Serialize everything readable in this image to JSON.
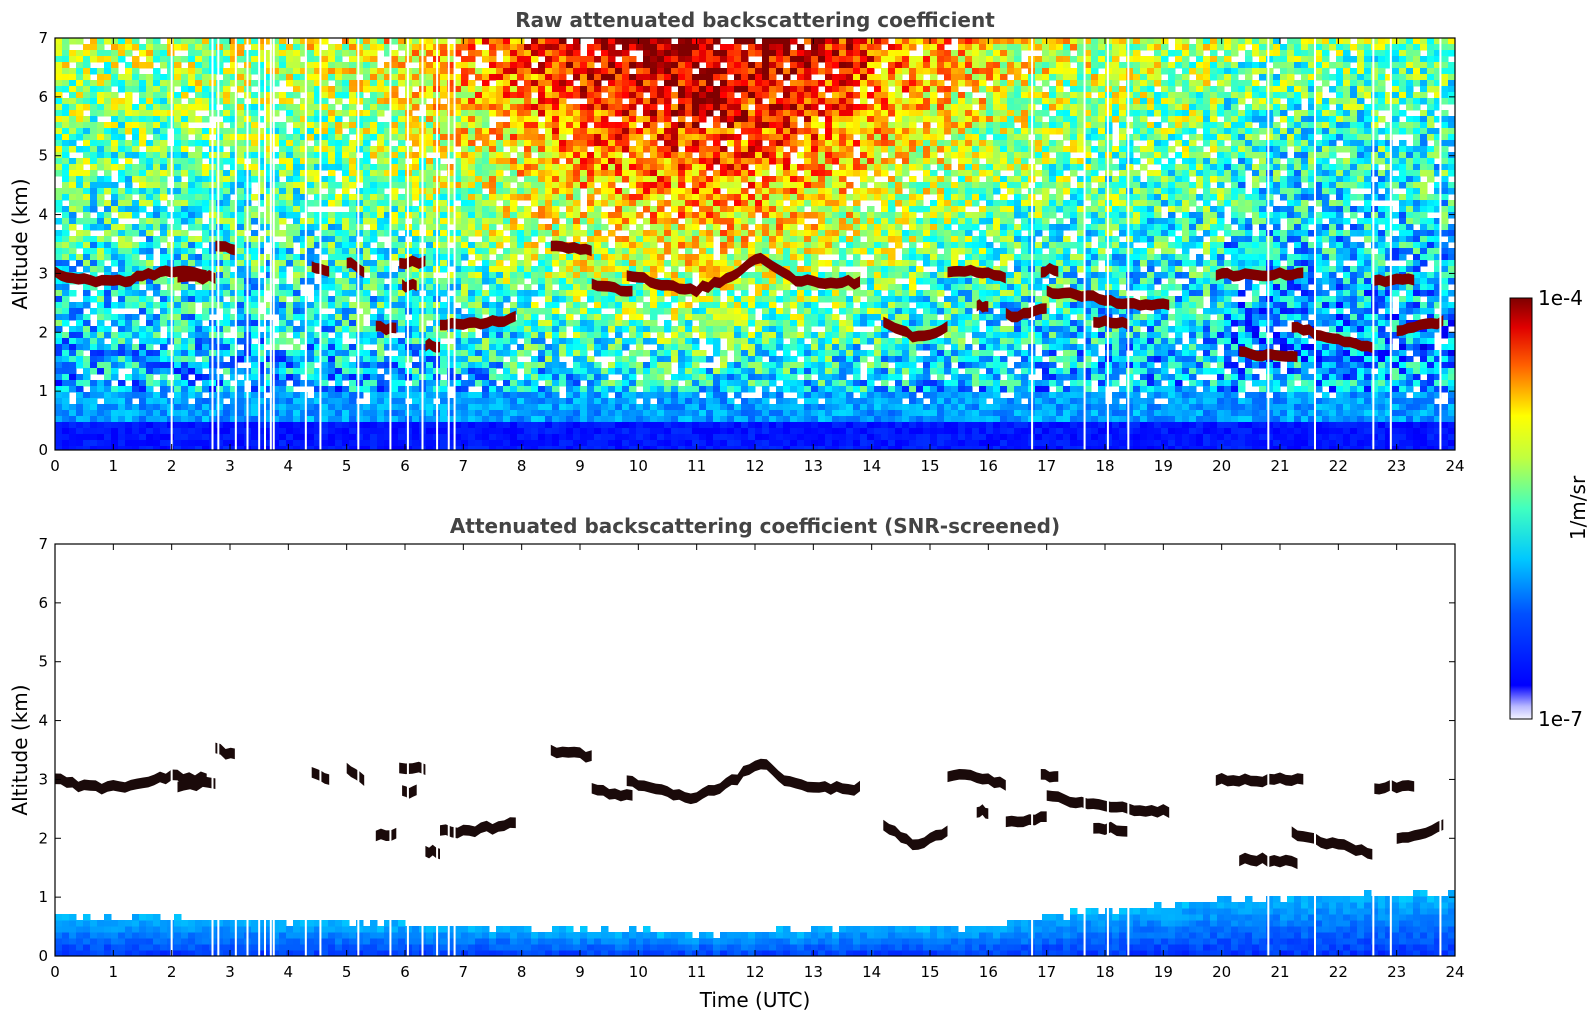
{
  "chart_data": [
    {
      "type": "heatmap",
      "title": "Raw attenuated backscattering coefficient",
      "ylabel": "Altitude (km)",
      "xlabel": "",
      "xlim": [
        0,
        24
      ],
      "ylim": [
        0,
        7
      ],
      "x_ticks": [
        "0",
        "1",
        "2",
        "3",
        "4",
        "5",
        "6",
        "7",
        "8",
        "9",
        "10",
        "11",
        "12",
        "13",
        "14",
        "15",
        "16",
        "17",
        "18",
        "19",
        "20",
        "21",
        "22",
        "23",
        "24"
      ],
      "y_ticks": [
        "0",
        "1",
        "2",
        "3",
        "4",
        "5",
        "6",
        "7"
      ],
      "data_gaps_hours": [
        2.0,
        2.7,
        2.8,
        3.1,
        3.3,
        3.5,
        3.6,
        3.7,
        3.75,
        4.3,
        4.55,
        5.2,
        5.75,
        6.05,
        6.3,
        6.55,
        6.75,
        6.85,
        16.75,
        17.65,
        18.05,
        18.4,
        20.8,
        21.6,
        22.6,
        22.9,
        23.75
      ],
      "cloud_layers": [
        {
          "x": [
            0,
            2.6
          ],
          "altitude_km": [
            3.0,
            2.85,
            2.9,
            3.05,
            3.0
          ]
        },
        {
          "x": [
            2.1,
            2.75
          ],
          "altitude_km": [
            2.9,
            2.95
          ]
        },
        {
          "x": [
            2.75,
            3.1
          ],
          "altitude_km": [
            3.5,
            3.4
          ]
        },
        {
          "x": [
            4.4,
            4.7
          ],
          "altitude_km": [
            3.1,
            3.0
          ]
        },
        {
          "x": [
            5.0,
            5.3
          ],
          "altitude_km": [
            3.2,
            3.0
          ]
        },
        {
          "x": [
            5.9,
            6.35
          ],
          "altitude_km": [
            3.2,
            3.2
          ]
        },
        {
          "x": [
            5.95,
            6.2
          ],
          "altitude_km": [
            2.8,
            2.8
          ]
        },
        {
          "x": [
            5.5,
            5.85
          ],
          "altitude_km": [
            2.07,
            2.07
          ]
        },
        {
          "x": [
            6.35,
            6.6
          ],
          "altitude_km": [
            1.8,
            1.75
          ]
        },
        {
          "x": [
            6.6,
            7.9
          ],
          "altitude_km": [
            2.1,
            2.15,
            2.25
          ]
        },
        {
          "x": [
            8.5,
            9.2
          ],
          "altitude_km": [
            3.5,
            3.4
          ]
        },
        {
          "x": [
            9.2,
            9.9
          ],
          "altitude_km": [
            2.85,
            2.75,
            2.7
          ]
        },
        {
          "x": [
            9.8,
            13.8
          ],
          "altitude_km": [
            3.0,
            2.8,
            2.7,
            2.9,
            3.3,
            2.9,
            2.85,
            2.85
          ]
        },
        {
          "x": [
            15.3,
            16.3
          ],
          "altitude_km": [
            3.05,
            3.05,
            2.9
          ]
        },
        {
          "x": [
            14.2,
            15.3
          ],
          "altitude_km": [
            2.2,
            1.9,
            2.1
          ]
        },
        {
          "x": [
            15.8,
            16.0
          ],
          "altitude_km": [
            2.45,
            2.45
          ]
        },
        {
          "x": [
            16.3,
            17.0
          ],
          "altitude_km": [
            2.3,
            2.3,
            2.4
          ]
        },
        {
          "x": [
            16.9,
            17.2
          ],
          "altitude_km": [
            3.05,
            3.05
          ]
        },
        {
          "x": [
            17.0,
            19.1
          ],
          "altitude_km": [
            2.7,
            2.6,
            2.5,
            2.45
          ]
        },
        {
          "x": [
            17.8,
            18.4
          ],
          "altitude_km": [
            2.2,
            2.15
          ]
        },
        {
          "x": [
            19.9,
            21.4
          ],
          "altitude_km": [
            2.98,
            2.98,
            3.0
          ]
        },
        {
          "x": [
            20.3,
            21.3
          ],
          "altitude_km": [
            1.65,
            1.6
          ]
        },
        {
          "x": [
            21.2,
            22.6
          ],
          "altitude_km": [
            2.1,
            1.9,
            1.75
          ]
        },
        {
          "x": [
            22.6,
            23.3
          ],
          "altitude_km": [
            2.85,
            2.9
          ]
        },
        {
          "x": [
            23.0,
            23.8
          ],
          "altitude_km": [
            2.0,
            2.2
          ]
        }
      ],
      "colorscale": "jet",
      "grid": false
    },
    {
      "type": "heatmap",
      "title": "Attenuated backscattering coefficient (SNR-screened)",
      "ylabel": "Altitude (km)",
      "xlabel": "Time (UTC)",
      "xlim": [
        0,
        24
      ],
      "ylim": [
        0,
        7
      ],
      "x_ticks": [
        "0",
        "1",
        "2",
        "3",
        "4",
        "5",
        "6",
        "7",
        "8",
        "9",
        "10",
        "11",
        "12",
        "13",
        "14",
        "15",
        "16",
        "17",
        "18",
        "19",
        "20",
        "21",
        "22",
        "23",
        "24"
      ],
      "y_ticks": [
        "0",
        "1",
        "2",
        "3",
        "4",
        "5",
        "6",
        "7"
      ],
      "boundary_layer_top_km": [
        {
          "x": 0,
          "y": 0.75
        },
        {
          "x": 2,
          "y": 0.7
        },
        {
          "x": 3,
          "y": 0.7
        },
        {
          "x": 5,
          "y": 0.6
        },
        {
          "x": 7,
          "y": 0.55
        },
        {
          "x": 9,
          "y": 0.5
        },
        {
          "x": 11,
          "y": 0.45
        },
        {
          "x": 13,
          "y": 0.5
        },
        {
          "x": 14,
          "y": 0.55
        },
        {
          "x": 16,
          "y": 0.55
        },
        {
          "x": 17,
          "y": 0.75
        },
        {
          "x": 18.5,
          "y": 0.85
        },
        {
          "x": 20,
          "y": 1.0
        },
        {
          "x": 22,
          "y": 1.1
        },
        {
          "x": 23.8,
          "y": 1.1
        }
      ],
      "grid": false
    }
  ],
  "colorbar": {
    "max_label": "1e-4",
    "min_label": "1e-7",
    "unit_label": "1/m/sr",
    "scale": "log"
  },
  "colors": {
    "dark_red": "#7f0000",
    "red": "#ff2000",
    "yellow": "#ffea00",
    "green": "#7cfc7c",
    "cyan": "#00d0ff",
    "blue": "#0028ff",
    "title_gray": "#444444"
  }
}
